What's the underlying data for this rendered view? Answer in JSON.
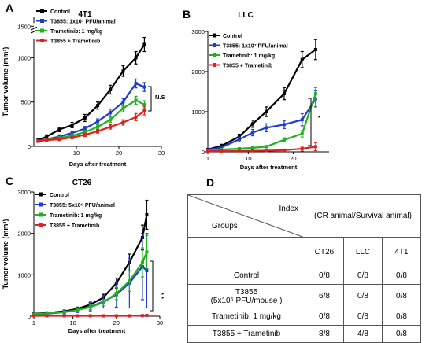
{
  "panels": {
    "a": "A",
    "b": "B",
    "c": "C",
    "d": "D"
  },
  "chart_data": [
    {
      "type": "line",
      "title": "4T1",
      "xlabel": "Days after treatment",
      "ylabel": "Tumor volume (mm³)",
      "xlim": [
        0,
        30
      ],
      "ylim": [
        0,
        1600
      ],
      "axis_break": [
        1250,
        1500
      ],
      "x_ticks": [
        10,
        20,
        30
      ],
      "y_ticks": [
        0,
        500,
        1000,
        1500
      ],
      "annotation": "N.S",
      "legend_position": "top-left",
      "series": [
        {
          "name": "Control",
          "color": "#000000",
          "x": [
            1,
            3,
            6,
            9,
            12,
            15,
            18,
            21,
            24,
            26
          ],
          "y": [
            70,
            110,
            190,
            240,
            320,
            460,
            640,
            850,
            1000,
            1150
          ],
          "err": [
            20,
            20,
            25,
            30,
            40,
            40,
            50,
            60,
            70,
            80
          ]
        },
        {
          "name": "T3855: 1x10⁷ PFU/animal",
          "color": "#1f3dcc",
          "x": [
            1,
            3,
            6,
            9,
            12,
            15,
            18,
            21,
            24,
            26
          ],
          "y": [
            60,
            80,
            110,
            150,
            200,
            280,
            380,
            500,
            710,
            670
          ],
          "err": [
            15,
            15,
            20,
            20,
            25,
            30,
            40,
            40,
            50,
            50
          ]
        },
        {
          "name": "Trametinib: 1 mg/kg",
          "color": "#22b022",
          "x": [
            1,
            3,
            6,
            9,
            12,
            15,
            18,
            21,
            24,
            26
          ],
          "y": [
            60,
            75,
            95,
            120,
            160,
            220,
            300,
            430,
            520,
            470
          ],
          "err": [
            15,
            15,
            15,
            20,
            20,
            25,
            30,
            40,
            45,
            45
          ]
        },
        {
          "name": "T3855 + Trametinib",
          "color": "#e02020",
          "x": [
            1,
            3,
            6,
            9,
            12,
            15,
            18,
            21,
            24,
            26
          ],
          "y": [
            60,
            70,
            80,
            100,
            130,
            170,
            220,
            270,
            330,
            400
          ],
          "err": [
            15,
            15,
            15,
            15,
            20,
            20,
            25,
            30,
            40,
            45
          ]
        }
      ]
    },
    {
      "type": "line",
      "title": "LLC",
      "xlabel": "Days after treatment",
      "ylabel": "",
      "xlim": [
        1,
        28
      ],
      "ylim": [
        0,
        3000
      ],
      "x_ticks": [
        1,
        10,
        20
      ],
      "y_ticks": [
        0,
        1000,
        2000,
        3000
      ],
      "annotation": "*",
      "legend_position": "top-left",
      "series": [
        {
          "name": "Control",
          "color": "#000000",
          "x": [
            1,
            4,
            8,
            11,
            14,
            18,
            22,
            25
          ],
          "y": [
            60,
            150,
            380,
            700,
            1000,
            1450,
            2300,
            2550
          ],
          "err": [
            20,
            40,
            60,
            90,
            120,
            150,
            200,
            250
          ]
        },
        {
          "name": "T3855: 1x10⁷ PFU/animal",
          "color": "#1f3dcc",
          "x": [
            1,
            4,
            8,
            11,
            14,
            18,
            22,
            25
          ],
          "y": [
            50,
            110,
            310,
            480,
            600,
            680,
            800,
            1320
          ],
          "err": [
            20,
            30,
            60,
            80,
            100,
            100,
            150,
            200
          ]
        },
        {
          "name": "Trametinib: 1 mg/kg",
          "color": "#22b022",
          "x": [
            1,
            4,
            8,
            11,
            14,
            18,
            22,
            25
          ],
          "y": [
            40,
            60,
            80,
            100,
            130,
            300,
            450,
            1450
          ],
          "err": [
            15,
            20,
            20,
            20,
            30,
            50,
            80,
            150
          ]
        },
        {
          "name": "T3855 + Trametinib",
          "color": "#e02020",
          "x": [
            1,
            4,
            8,
            11,
            14,
            18,
            22,
            25
          ],
          "y": [
            20,
            20,
            25,
            25,
            30,
            40,
            80,
            130
          ],
          "err": [
            10,
            10,
            10,
            10,
            20,
            30,
            60,
            100
          ]
        }
      ]
    },
    {
      "type": "line",
      "title": "CT26",
      "xlabel": "Days after treatment",
      "ylabel": "Tumor volume (mm³)",
      "xlim": [
        1,
        30
      ],
      "ylim": [
        0,
        3000
      ],
      "x_ticks": [
        1,
        10,
        20,
        30
      ],
      "y_ticks": [
        0,
        1000,
        2000,
        3000
      ],
      "annotation": "* *",
      "legend_position": "top-left",
      "series": [
        {
          "name": "Control",
          "color": "#000000",
          "x": [
            1,
            4,
            8,
            11,
            14,
            17,
            20,
            23,
            26,
            27
          ],
          "y": [
            60,
            80,
            120,
            180,
            280,
            450,
            800,
            1300,
            1900,
            2450
          ],
          "err": [
            20,
            20,
            30,
            40,
            60,
            80,
            120,
            200,
            300,
            350
          ]
        },
        {
          "name": "T3855: 5x10⁶ PFU/animal",
          "color": "#1f3dcc",
          "x": [
            1,
            4,
            8,
            11,
            14,
            17,
            20,
            23,
            26,
            27
          ],
          "y": [
            50,
            60,
            100,
            150,
            230,
            350,
            520,
            800,
            1200,
            1100
          ],
          "err": [
            20,
            20,
            40,
            60,
            100,
            150,
            300,
            600,
            800,
            900
          ]
        },
        {
          "name": "Trametinib: 1 mg/kg",
          "color": "#22b022",
          "x": [
            1,
            4,
            8,
            11,
            14,
            17,
            20,
            23,
            26,
            27
          ],
          "y": [
            50,
            70,
            100,
            150,
            220,
            330,
            550,
            850,
            1300,
            1550
          ],
          "err": [
            15,
            20,
            30,
            40,
            60,
            80,
            150,
            250,
            350,
            400
          ]
        },
        {
          "name": "T3855 + Trametinib",
          "color": "#e02020",
          "x": [
            1,
            4,
            8,
            11,
            14,
            17,
            20,
            23,
            26,
            27
          ],
          "y": [
            10,
            10,
            10,
            10,
            10,
            10,
            10,
            10,
            15,
            20
          ],
          "err": [
            5,
            5,
            5,
            5,
            5,
            5,
            5,
            5,
            10,
            10
          ]
        }
      ]
    },
    {
      "type": "table",
      "header_index": "Index",
      "header_groups": "Groups",
      "header_span": "(CR animal/Survival  animal)",
      "columns": [
        "CT26",
        "LLC",
        "4T1"
      ],
      "rows": [
        {
          "label": "Control",
          "values": [
            "0/8",
            "0/8",
            "0/8"
          ]
        },
        {
          "label": "T3855",
          "label2": "(5x10⁶ PFU/mouse )",
          "values": [
            "6/8",
            "0/8",
            "0/8"
          ]
        },
        {
          "label": "Trametinib: 1 mg/kg",
          "values": [
            "0/8",
            "0/8",
            "0/8"
          ]
        },
        {
          "label": "T3855 + Trametinib",
          "values": [
            "8/8",
            "4/8",
            "0/8"
          ]
        }
      ]
    }
  ]
}
